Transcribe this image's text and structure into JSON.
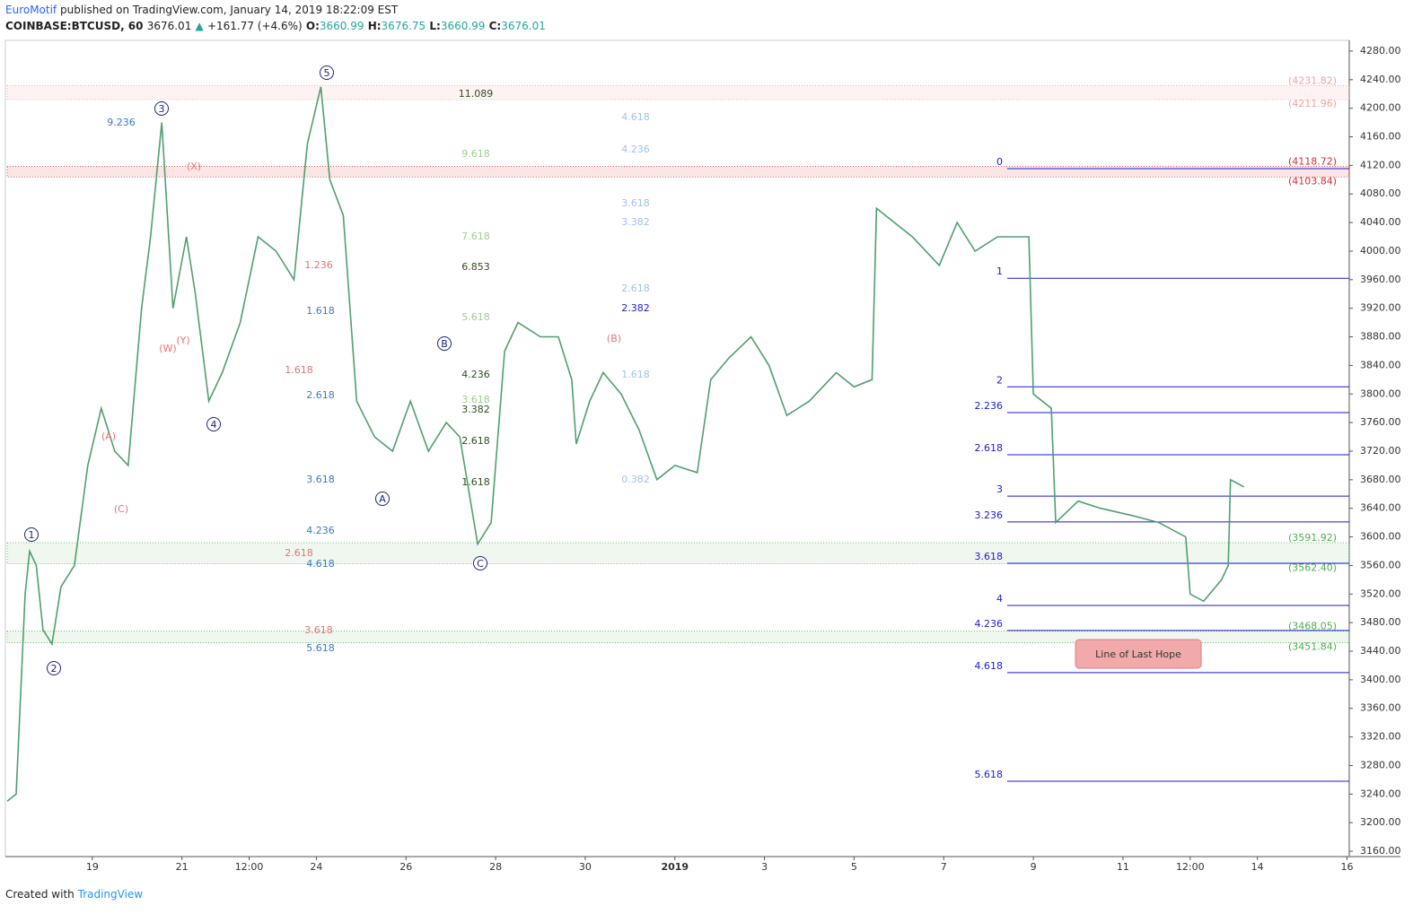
{
  "header": {
    "author": "EuroMotif",
    "published": " published on TradingView.com, January 14, 2019 18:22:09 EST",
    "symbol": "COINBASE:BTCUSD, 60",
    "last": "3676.01",
    "change": "+161.77 (+4.6%)",
    "o_label": "O:",
    "o": "3660.99",
    "h_label": "H:",
    "h": "3676.75",
    "l_label": "L:",
    "l": "3660.99",
    "c_label": "C:",
    "c": "3676.01"
  },
  "chart_data": {
    "type": "line",
    "series": [
      {
        "color": "#4f9f6f",
        "x": [
          17.1,
          17.3,
          17.5,
          17.6,
          17.75,
          17.9,
          18.1,
          18.3,
          18.6,
          18.9,
          19.2,
          19.5,
          19.8,
          20.1,
          20.3,
          20.55,
          20.8,
          21.1,
          21.3,
          21.6,
          21.9,
          22.3,
          22.7,
          23.1,
          23.5,
          23.8,
          24.1,
          24.3,
          24.6,
          24.9,
          25.3,
          25.7,
          26.1,
          26.5,
          26.9,
          27.2,
          27.6,
          27.9,
          28.2,
          28.5,
          29.0,
          29.4,
          29.7,
          29.8,
          30.1,
          30.4,
          30.8,
          31.2,
          31.6,
          32.0,
          32.5,
          32.8,
          33.2,
          33.7,
          34.1,
          34.5,
          35.0,
          35.6,
          36.0,
          36.4,
          36.5,
          36.9,
          37.3,
          37.9,
          38.3,
          38.7,
          39.2,
          39.9,
          40.0,
          40.4,
          40.5,
          41.0,
          41.5,
          42.2,
          42.8,
          43.4,
          43.5,
          43.8,
          44.2,
          44.35,
          44.4,
          44.7
        ],
        "values": [
          3230,
          3240,
          3520,
          3580,
          3560,
          3470,
          3450,
          3530,
          3560,
          3700,
          3780,
          3720,
          3700,
          3920,
          4020,
          4180,
          3920,
          4020,
          3940,
          3790,
          3830,
          3900,
          4020,
          4000,
          3960,
          4150,
          4230,
          4100,
          4050,
          3790,
          3740,
          3720,
          3790,
          3720,
          3760,
          3740,
          3590,
          3620,
          3860,
          3900,
          3880,
          3880,
          3820,
          3730,
          3790,
          3830,
          3800,
          3750,
          3680,
          3700,
          3690,
          3820,
          3850,
          3880,
          3840,
          3770,
          3790,
          3830,
          3810,
          3820,
          4060,
          4040,
          4020,
          3980,
          4040,
          4000,
          4020,
          4020,
          3800,
          3780,
          3620,
          3650,
          3640,
          3630,
          3620,
          3600,
          3520,
          3510,
          3540,
          3560,
          3680,
          3670
        ]
      }
    ],
    "xlim": [
      17.1,
      47.05
    ],
    "xticks": [
      {
        "value": 19,
        "label": "19"
      },
      {
        "value": 21,
        "label": "21"
      },
      {
        "value": 22.5,
        "label": "12:00"
      },
      {
        "value": 24,
        "label": "24"
      },
      {
        "value": 26,
        "label": "26"
      },
      {
        "value": 28,
        "label": "28"
      },
      {
        "value": 30,
        "label": "30"
      },
      {
        "value": 32,
        "label": "2019"
      },
      {
        "value": 34,
        "label": "3"
      },
      {
        "value": 36,
        "label": "5"
      },
      {
        "value": 38,
        "label": "7"
      },
      {
        "value": 40,
        "label": "9"
      },
      {
        "value": 42,
        "label": "11"
      },
      {
        "value": 43.5,
        "label": "12:00"
      },
      {
        "value": 45,
        "label": "14"
      },
      {
        "value": 47,
        "label": "16"
      }
    ],
    "ylim": [
      3152.5,
      4295
    ],
    "yticks": [
      {
        "value": 3160,
        "label": "3160.00"
      },
      {
        "value": 3200,
        "label": "3200.00"
      },
      {
        "value": 3240,
        "label": "3240.00"
      },
      {
        "value": 3280,
        "label": "3280.00"
      },
      {
        "value": 3320,
        "label": "3320.00"
      },
      {
        "value": 3360,
        "label": "3360.00"
      },
      {
        "value": 3400,
        "label": "3400.00"
      },
      {
        "value": 3440,
        "label": "3440.00"
      },
      {
        "value": 3480,
        "label": "3480.00"
      },
      {
        "value": 3520,
        "label": "3520.00"
      },
      {
        "value": 3560,
        "label": "3560.00"
      },
      {
        "value": 3600,
        "label": "3600.00"
      },
      {
        "value": 3640,
        "label": "3640.00"
      },
      {
        "value": 3680,
        "label": "3680.00"
      },
      {
        "value": 3720,
        "label": "3720.00"
      },
      {
        "value": 3760,
        "label": "3760.00"
      },
      {
        "value": 3800,
        "label": "3800.00"
      },
      {
        "value": 3840,
        "label": "3840.00"
      },
      {
        "value": 3880,
        "label": "3880.00"
      },
      {
        "value": 3920,
        "label": "3920.00"
      },
      {
        "value": 3960,
        "label": "3960.00"
      },
      {
        "value": 4000,
        "label": "4000.00"
      },
      {
        "value": 4040,
        "label": "4040.00"
      },
      {
        "value": 4080,
        "label": "4080.00"
      },
      {
        "value": 4120,
        "label": "4120.00"
      },
      {
        "value": 4160,
        "label": "4160.00"
      },
      {
        "value": 4200,
        "label": "4200.00"
      },
      {
        "value": 4240,
        "label": "4240.00"
      },
      {
        "value": 4280,
        "label": "4280.00"
      }
    ],
    "fib_levels": {
      "color": "#1a1ad6",
      "labels": [
        "0",
        "1",
        "2",
        "2.236",
        "2.618",
        "3",
        "3.236",
        "3.618",
        "4",
        "4.236",
        "4.618",
        "5.618"
      ],
      "values": [
        4115.5,
        3962,
        3810,
        3774,
        3715,
        3657,
        3621,
        3563,
        3504,
        3469,
        3410,
        3258
      ]
    },
    "zones": [
      {
        "color": "#f4a0a0",
        "fill": "rgba(244,160,160,0.12)",
        "levels": [
          {
            "value": 4231.82,
            "label": "(4231.82)"
          },
          {
            "value": 4211.96,
            "label": "(4211.96)"
          }
        ]
      },
      {
        "color": "#d32f2f",
        "fill": "rgba(230,80,80,0.15)",
        "levels": [
          {
            "value": 4118.72,
            "label": "(4118.72)"
          },
          {
            "value": 4103.84,
            "label": "(4103.84)"
          }
        ]
      },
      {
        "color": "#4caf50",
        "fill": "rgba(120,190,120,0.12)",
        "levels": [
          {
            "value": 3591.92,
            "label": "(3591.92)"
          },
          {
            "value": 3562.4,
            "label": "(3562.40)"
          }
        ]
      },
      {
        "color": "#4caf50",
        "fill": "rgba(120,190,120,0.12)",
        "levels": [
          {
            "value": 3468.05,
            "label": "(3468.05)"
          },
          {
            "value": 3451.84,
            "label": "(3451.84)"
          }
        ]
      }
    ],
    "waves": [
      "1",
      "2",
      "3",
      "4",
      "5",
      "A",
      "B",
      "C"
    ],
    "fib_groups": [
      {
        "color": "#2e4d1e",
        "labels": [
          "11.089",
          "6.853",
          "4.236",
          "3.382",
          "2.618",
          "1.618"
        ]
      },
      {
        "color": "#9ccf8e",
        "labels": [
          "9.618",
          "7.618",
          "5.618",
          "3.618"
        ]
      },
      {
        "color": "#3b78c4",
        "labels": [
          "9.236",
          "1.618",
          "2.618",
          "3.618",
          "4.236",
          "4.618",
          "5.618"
        ]
      },
      {
        "color": "#e57373",
        "labels": [
          "1.236",
          "1.618",
          "2.618",
          "3.618",
          "(W)",
          "(X)",
          "(Y)",
          "(A)",
          "(B)",
          "(C)"
        ]
      },
      {
        "color": "#9fc3ea",
        "labels": [
          "4.618",
          "4.236",
          "3.618",
          "3.382",
          "2.618",
          "1.618",
          "0.382"
        ]
      },
      {
        "color": "#1a1ad6",
        "labels": [
          "2.382"
        ]
      }
    ],
    "annotation": "Line of Last Hope"
  },
  "footer": {
    "created": "Created with",
    "brand": "TradingView"
  }
}
